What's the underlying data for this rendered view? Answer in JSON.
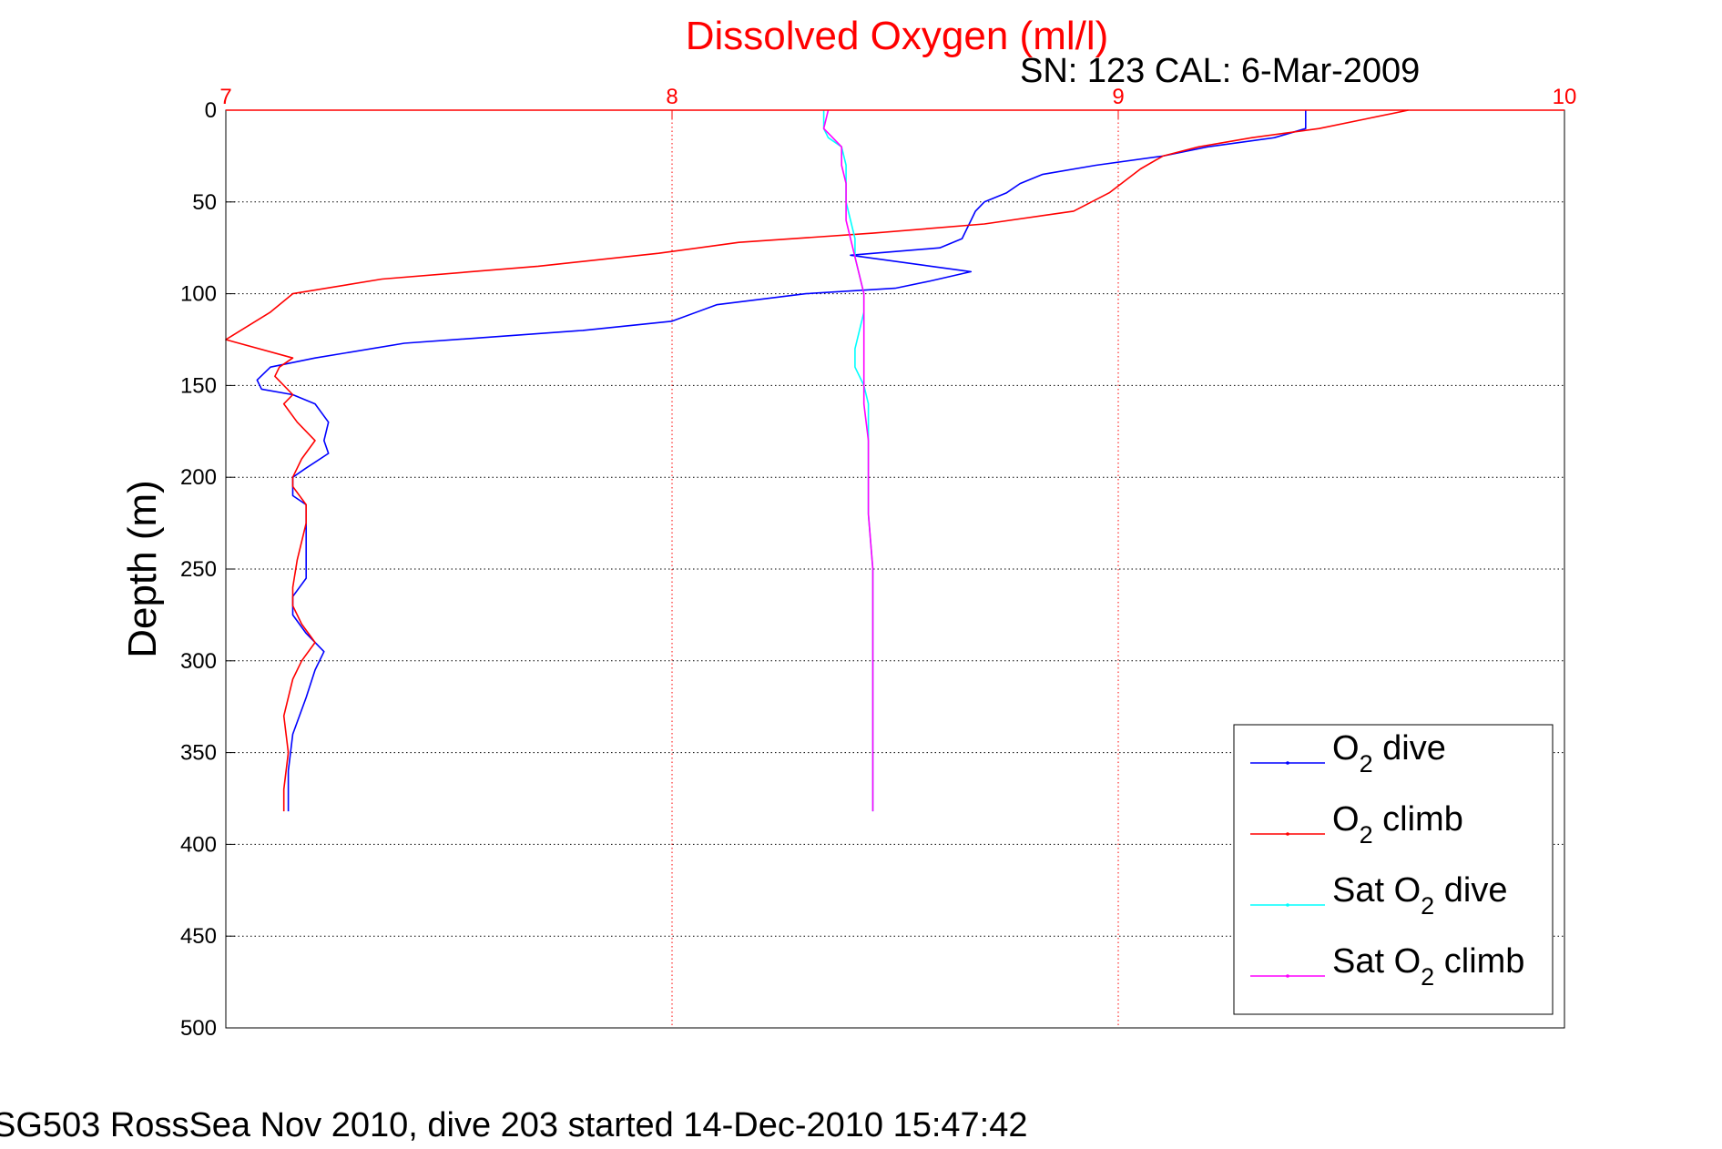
{
  "chart_data": {
    "type": "line",
    "title": "Dissolved Oxygen (ml/l)",
    "subtitle": "SN: 123  CAL: 6-Mar-2009",
    "footer": "SG503 RossSea Nov 2010, dive 203 started 14-Dec-2010 15:47:42",
    "ylabel": "Depth (m)",
    "xlabel": "",
    "xlim": [
      7,
      10
    ],
    "ylim": [
      0,
      500
    ],
    "y_reversed": true,
    "x_axis_position": "top",
    "grid": true,
    "legend_position": "bottom-right",
    "x_ticks": [
      "7",
      "8",
      "9",
      "10"
    ],
    "y_ticks": [
      "0",
      "50",
      "100",
      "150",
      "200",
      "250",
      "300",
      "350",
      "400",
      "450",
      "500"
    ],
    "colors": {
      "title": "#ff0000",
      "x_axis": "#ff0000",
      "grid_x": "#ff0000",
      "grid_y": "#000000"
    },
    "legend": [
      {
        "prefix": "O",
        "sub": "2",
        "suffix": " dive"
      },
      {
        "prefix": "O",
        "sub": "2",
        "suffix": " climb"
      },
      {
        "prefix": "Sat O",
        "sub": "2",
        "suffix": " dive"
      },
      {
        "prefix": "Sat O",
        "sub": "2",
        "suffix": " climb"
      }
    ],
    "series": [
      {
        "color": "#0000ff",
        "points": [
          [
            9.42,
            0
          ],
          [
            9.42,
            5
          ],
          [
            9.42,
            10
          ],
          [
            9.35,
            15
          ],
          [
            9.2,
            20
          ],
          [
            9.1,
            25
          ],
          [
            8.95,
            30
          ],
          [
            8.83,
            35
          ],
          [
            8.78,
            40
          ],
          [
            8.75,
            45
          ],
          [
            8.7,
            50
          ],
          [
            8.68,
            55
          ],
          [
            8.67,
            60
          ],
          [
            8.66,
            65
          ],
          [
            8.65,
            70
          ],
          [
            8.6,
            75
          ],
          [
            8.4,
            79
          ],
          [
            8.58,
            85
          ],
          [
            8.67,
            88
          ],
          [
            8.58,
            93
          ],
          [
            8.5,
            97
          ],
          [
            8.3,
            100
          ],
          [
            8.1,
            106
          ],
          [
            8.0,
            115
          ],
          [
            7.8,
            120
          ],
          [
            7.4,
            127
          ],
          [
            7.2,
            135
          ],
          [
            7.1,
            140
          ],
          [
            7.07,
            147
          ],
          [
            7.08,
            152
          ],
          [
            7.15,
            155
          ],
          [
            7.2,
            160
          ],
          [
            7.23,
            170
          ],
          [
            7.22,
            180
          ],
          [
            7.23,
            187
          ],
          [
            7.18,
            195
          ],
          [
            7.15,
            200
          ],
          [
            7.15,
            210
          ],
          [
            7.18,
            215
          ],
          [
            7.18,
            225
          ],
          [
            7.18,
            240
          ],
          [
            7.18,
            255
          ],
          [
            7.15,
            265
          ],
          [
            7.15,
            275
          ],
          [
            7.18,
            285
          ],
          [
            7.22,
            295
          ],
          [
            7.2,
            305
          ],
          [
            7.18,
            320
          ],
          [
            7.15,
            340
          ],
          [
            7.14,
            360
          ],
          [
            7.14,
            382
          ]
        ]
      },
      {
        "color": "#ff0000",
        "points": [
          [
            9.65,
            0
          ],
          [
            9.55,
            5
          ],
          [
            9.45,
            10
          ],
          [
            9.3,
            15
          ],
          [
            9.18,
            20
          ],
          [
            9.1,
            25
          ],
          [
            9.05,
            32
          ],
          [
            8.98,
            45
          ],
          [
            8.9,
            55
          ],
          [
            8.7,
            62
          ],
          [
            8.45,
            67
          ],
          [
            8.15,
            72
          ],
          [
            7.97,
            78
          ],
          [
            7.7,
            85
          ],
          [
            7.35,
            92
          ],
          [
            7.15,
            100
          ],
          [
            7.1,
            110
          ],
          [
            7.0,
            125
          ],
          [
            7.15,
            135
          ],
          [
            7.12,
            140
          ],
          [
            7.11,
            145
          ],
          [
            7.15,
            155
          ],
          [
            7.13,
            160
          ],
          [
            7.16,
            170
          ],
          [
            7.2,
            180
          ],
          [
            7.17,
            190
          ],
          [
            7.15,
            200
          ],
          [
            7.15,
            205
          ],
          [
            7.18,
            215
          ],
          [
            7.18,
            225
          ],
          [
            7.16,
            245
          ],
          [
            7.15,
            260
          ],
          [
            7.15,
            270
          ],
          [
            7.17,
            280
          ],
          [
            7.2,
            290
          ],
          [
            7.17,
            300
          ],
          [
            7.15,
            310
          ],
          [
            7.13,
            330
          ],
          [
            7.14,
            350
          ],
          [
            7.13,
            370
          ],
          [
            7.13,
            382
          ]
        ]
      },
      {
        "color": "#00ffff",
        "points": [
          [
            8.34,
            0
          ],
          [
            8.34,
            10
          ],
          [
            8.35,
            15
          ],
          [
            8.38,
            20
          ],
          [
            8.39,
            30
          ],
          [
            8.39,
            40
          ],
          [
            8.39,
            50
          ],
          [
            8.4,
            60
          ],
          [
            8.41,
            70
          ],
          [
            8.41,
            80
          ],
          [
            8.42,
            90
          ],
          [
            8.43,
            100
          ],
          [
            8.43,
            110
          ],
          [
            8.42,
            120
          ],
          [
            8.41,
            130
          ],
          [
            8.41,
            140
          ],
          [
            8.43,
            150
          ],
          [
            8.44,
            160
          ],
          [
            8.44,
            180
          ],
          [
            8.44,
            200
          ],
          [
            8.44,
            220
          ],
          [
            8.45,
            250
          ],
          [
            8.45,
            300
          ],
          [
            8.45,
            350
          ],
          [
            8.45,
            382
          ]
        ]
      },
      {
        "color": "#ff00ff",
        "points": [
          [
            8.35,
            0
          ],
          [
            8.34,
            10
          ],
          [
            8.36,
            15
          ],
          [
            8.38,
            20
          ],
          [
            8.38,
            30
          ],
          [
            8.39,
            40
          ],
          [
            8.39,
            50
          ],
          [
            8.39,
            60
          ],
          [
            8.4,
            70
          ],
          [
            8.41,
            80
          ],
          [
            8.42,
            90
          ],
          [
            8.43,
            100
          ],
          [
            8.43,
            110
          ],
          [
            8.43,
            120
          ],
          [
            8.43,
            130
          ],
          [
            8.43,
            140
          ],
          [
            8.43,
            150
          ],
          [
            8.43,
            160
          ],
          [
            8.44,
            180
          ],
          [
            8.44,
            200
          ],
          [
            8.44,
            220
          ],
          [
            8.45,
            250
          ],
          [
            8.45,
            300
          ],
          [
            8.45,
            350
          ],
          [
            8.45,
            382
          ]
        ]
      }
    ]
  }
}
